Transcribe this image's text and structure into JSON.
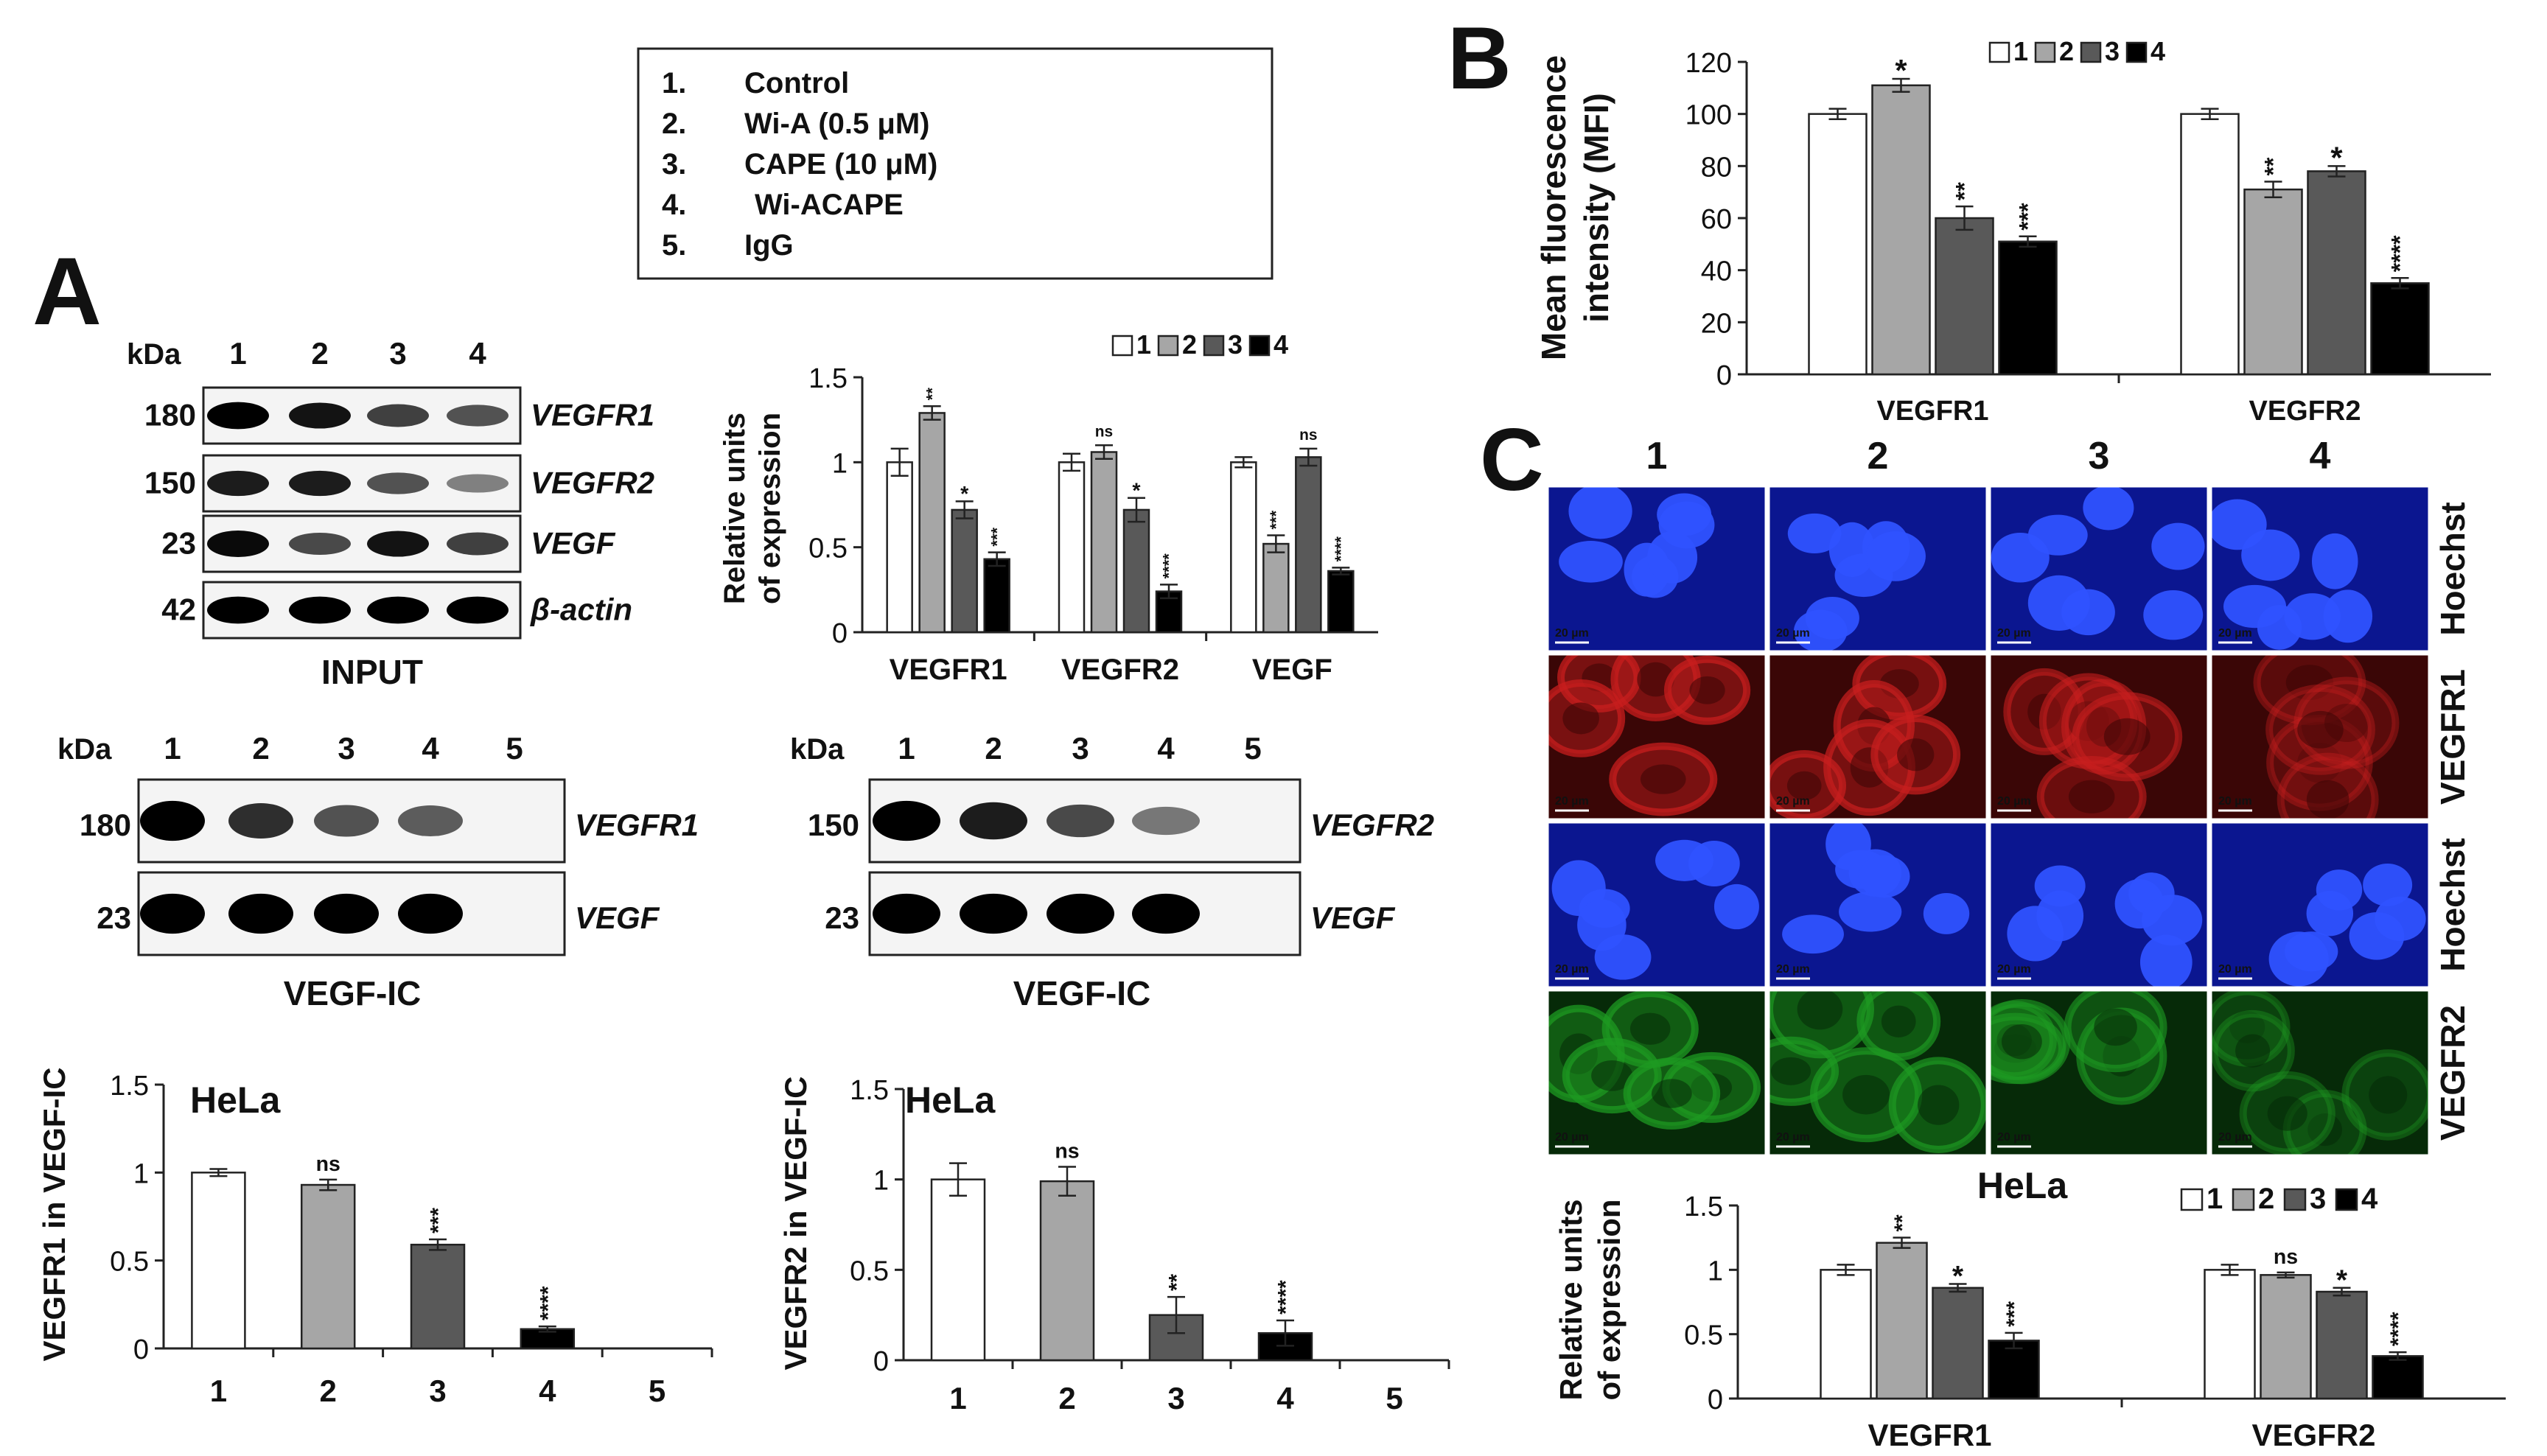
{
  "legend_box": {
    "items": [
      {
        "num": "1.",
        "label": "Control"
      },
      {
        "num": "2.",
        "label": "Wi-A (0.5 μM)"
      },
      {
        "num": "3.",
        "label": "CAPE (10 μM)"
      },
      {
        "num": "4.",
        "label": "Wi-ACAPE"
      },
      {
        "num": "5.",
        "label": "IgG"
      }
    ]
  },
  "panel_labels": {
    "a": "A",
    "b": "B",
    "c": "C"
  },
  "colors": {
    "g1": "#ffffff",
    "g2": "#a6a6a6",
    "g3": "#595959",
    "g4": "#000000"
  },
  "input_blot": {
    "kda_label": "kDa",
    "lanes": [
      "1",
      "2",
      "3",
      "4"
    ],
    "rows": [
      {
        "kda": "180",
        "protein": "VEGFR1"
      },
      {
        "kda": "150",
        "protein": "VEGFR2"
      },
      {
        "kda": "23",
        "protein": "VEGF"
      },
      {
        "kda": "42",
        "protein": "β-actin"
      }
    ],
    "caption": "INPUT"
  },
  "ic_blot_1": {
    "kda_label": "kDa",
    "lanes": [
      "1",
      "2",
      "3",
      "4",
      "5"
    ],
    "rows": [
      {
        "kda": "180",
        "protein": "VEGFR1"
      },
      {
        "kda": "23",
        "protein": "VEGF"
      }
    ],
    "caption": "VEGF-IC"
  },
  "ic_blot_2": {
    "kda_label": "kDa",
    "lanes": [
      "1",
      "2",
      "3",
      "4",
      "5"
    ],
    "rows": [
      {
        "kda": "150",
        "protein": "VEGFR2"
      },
      {
        "kda": "23",
        "protein": "VEGF"
      }
    ],
    "caption": "VEGF-IC"
  },
  "microscopy": {
    "columns": [
      "1",
      "2",
      "3",
      "4"
    ],
    "rows": [
      {
        "label": "Hoechst",
        "color": "#1533c8"
      },
      {
        "label": "VEGFR1",
        "color": "#c81e1e"
      },
      {
        "label": "Hoechst",
        "color": "#1533c8"
      },
      {
        "label": "VEGFR2",
        "color": "#1e9a22"
      }
    ],
    "scale_bar": "20 µm"
  },
  "chart_data": [
    {
      "id": "input_quant",
      "type": "bar",
      "ylabel": "Relative units of expression",
      "ylim": [
        0,
        1.5
      ],
      "yticks": [
        "0",
        "0.5",
        "1",
        "1.5"
      ],
      "categories": [
        "VEGFR1",
        "VEGFR2",
        "VEGF"
      ],
      "legend": [
        "1",
        "2",
        "3",
        "4"
      ],
      "series": [
        {
          "name": "1",
          "values": [
            1.0,
            1.0,
            1.0
          ],
          "errors": [
            0.08,
            0.05,
            0.03
          ],
          "sig": [
            "",
            "",
            ""
          ]
        },
        {
          "name": "2",
          "values": [
            1.29,
            1.06,
            0.52
          ],
          "errors": [
            0.04,
            0.04,
            0.05
          ],
          "sig": [
            "**",
            "ns",
            "***"
          ]
        },
        {
          "name": "3",
          "values": [
            0.72,
            0.72,
            1.03
          ],
          "errors": [
            0.05,
            0.07,
            0.05
          ],
          "sig": [
            "*",
            "*",
            "ns"
          ]
        },
        {
          "name": "4",
          "values": [
            0.43,
            0.24,
            0.36
          ],
          "errors": [
            0.04,
            0.04,
            0.02
          ],
          "sig": [
            "***",
            "****",
            "****"
          ]
        }
      ]
    },
    {
      "id": "mfi",
      "type": "bar",
      "ylabel": "Mean fluorescence intensity (MFI)",
      "ylim": [
        0,
        120
      ],
      "yticks": [
        "0",
        "20",
        "40",
        "60",
        "80",
        "100",
        "120"
      ],
      "categories": [
        "VEGFR1",
        "VEGFR2"
      ],
      "legend": [
        "1",
        "2",
        "3",
        "4"
      ],
      "series": [
        {
          "name": "1",
          "values": [
            100,
            100
          ],
          "errors": [
            2,
            2
          ],
          "sig": [
            "",
            ""
          ]
        },
        {
          "name": "2",
          "values": [
            111,
            71
          ],
          "errors": [
            2.5,
            3
          ],
          "sig": [
            "*",
            "**"
          ]
        },
        {
          "name": "3",
          "values": [
            60,
            78
          ],
          "errors": [
            4.5,
            2
          ],
          "sig": [
            "**",
            "*"
          ]
        },
        {
          "name": "4",
          "values": [
            51,
            35
          ],
          "errors": [
            2,
            2
          ],
          "sig": [
            "***",
            "****"
          ]
        }
      ]
    },
    {
      "id": "vegfr1_ic",
      "type": "bar",
      "title": "HeLa",
      "ylabel": "VEGFR1 in VEGF-IC",
      "ylim": [
        0,
        1.5
      ],
      "yticks": [
        "0",
        "0.5",
        "1",
        "1.5"
      ],
      "categories": [
        "1",
        "2",
        "3",
        "4",
        "5"
      ],
      "values": [
        1.0,
        0.93,
        0.59,
        0.11,
        0
      ],
      "errors": [
        0.02,
        0.03,
        0.03,
        0.015,
        0
      ],
      "sig": [
        "",
        "ns",
        "***",
        "****",
        ""
      ]
    },
    {
      "id": "vegfr2_ic",
      "type": "bar",
      "title": "HeLa",
      "ylabel": "VEGFR2 in VEGF-IC",
      "ylim": [
        0,
        1.5
      ],
      "yticks": [
        "0",
        "0.5",
        "1",
        "1.5"
      ],
      "categories": [
        "1",
        "2",
        "3",
        "4",
        "5"
      ],
      "values": [
        1.0,
        0.99,
        0.25,
        0.15,
        0
      ],
      "errors": [
        0.09,
        0.08,
        0.1,
        0.07,
        0
      ],
      "sig": [
        "",
        "ns",
        "**",
        "****",
        ""
      ]
    },
    {
      "id": "micro_quant",
      "type": "bar",
      "title": "HeLa",
      "ylabel": "Relative units of expression",
      "ylim": [
        0,
        1.5
      ],
      "yticks": [
        "0",
        "0.5",
        "1",
        "1.5"
      ],
      "categories": [
        "VEGFR1",
        "VEGFR2"
      ],
      "legend": [
        "1",
        "2",
        "3",
        "4"
      ],
      "series": [
        {
          "name": "1",
          "values": [
            1.0,
            1.0
          ],
          "errors": [
            0.04,
            0.04
          ],
          "sig": [
            "",
            ""
          ]
        },
        {
          "name": "2",
          "values": [
            1.21,
            0.96
          ],
          "errors": [
            0.04,
            0.02
          ],
          "sig": [
            "**",
            "ns"
          ]
        },
        {
          "name": "3",
          "values": [
            0.86,
            0.83
          ],
          "errors": [
            0.03,
            0.03
          ],
          "sig": [
            "*",
            "*"
          ]
        },
        {
          "name": "4",
          "values": [
            0.45,
            0.33
          ],
          "errors": [
            0.06,
            0.03
          ],
          "sig": [
            "***",
            "****"
          ]
        }
      ]
    }
  ]
}
